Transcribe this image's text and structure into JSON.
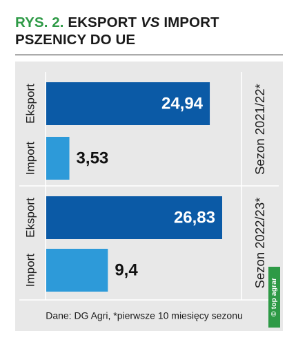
{
  "header": {
    "figure_label": "RYS. 2.",
    "title_part1": "EKSPORT",
    "title_vs": "VS",
    "title_part2": "IMPORT",
    "title_line2": "PSZENICY DO UE"
  },
  "footer": {
    "source_note": "Dane: DG Agri, *pierwsze 10 miesięcy sezonu"
  },
  "logo": {
    "text": "© top agrar"
  },
  "colors": {
    "export_bar": "#0b5aa6",
    "import_bar": "#2d9ad9",
    "panel": "#e8e8e8",
    "accent_green": "#2e9a46"
  },
  "chart_data": {
    "type": "bar",
    "orientation": "horizontal",
    "groups": [
      {
        "label": "Sezon 2021/22*",
        "bars": [
          {
            "category": "Eksport",
            "value": 24.94,
            "value_label": "24,94"
          },
          {
            "category": "Import",
            "value": 3.53,
            "value_label": "3,53"
          }
        ]
      },
      {
        "label": "Sezon 2022/23*",
        "bars": [
          {
            "category": "Eksport",
            "value": 26.83,
            "value_label": "26,83"
          },
          {
            "category": "Import",
            "value": 9.4,
            "value_label": "9,4"
          }
        ]
      }
    ],
    "xlim": [
      0,
      28
    ],
    "grid": false,
    "legend": "none"
  }
}
